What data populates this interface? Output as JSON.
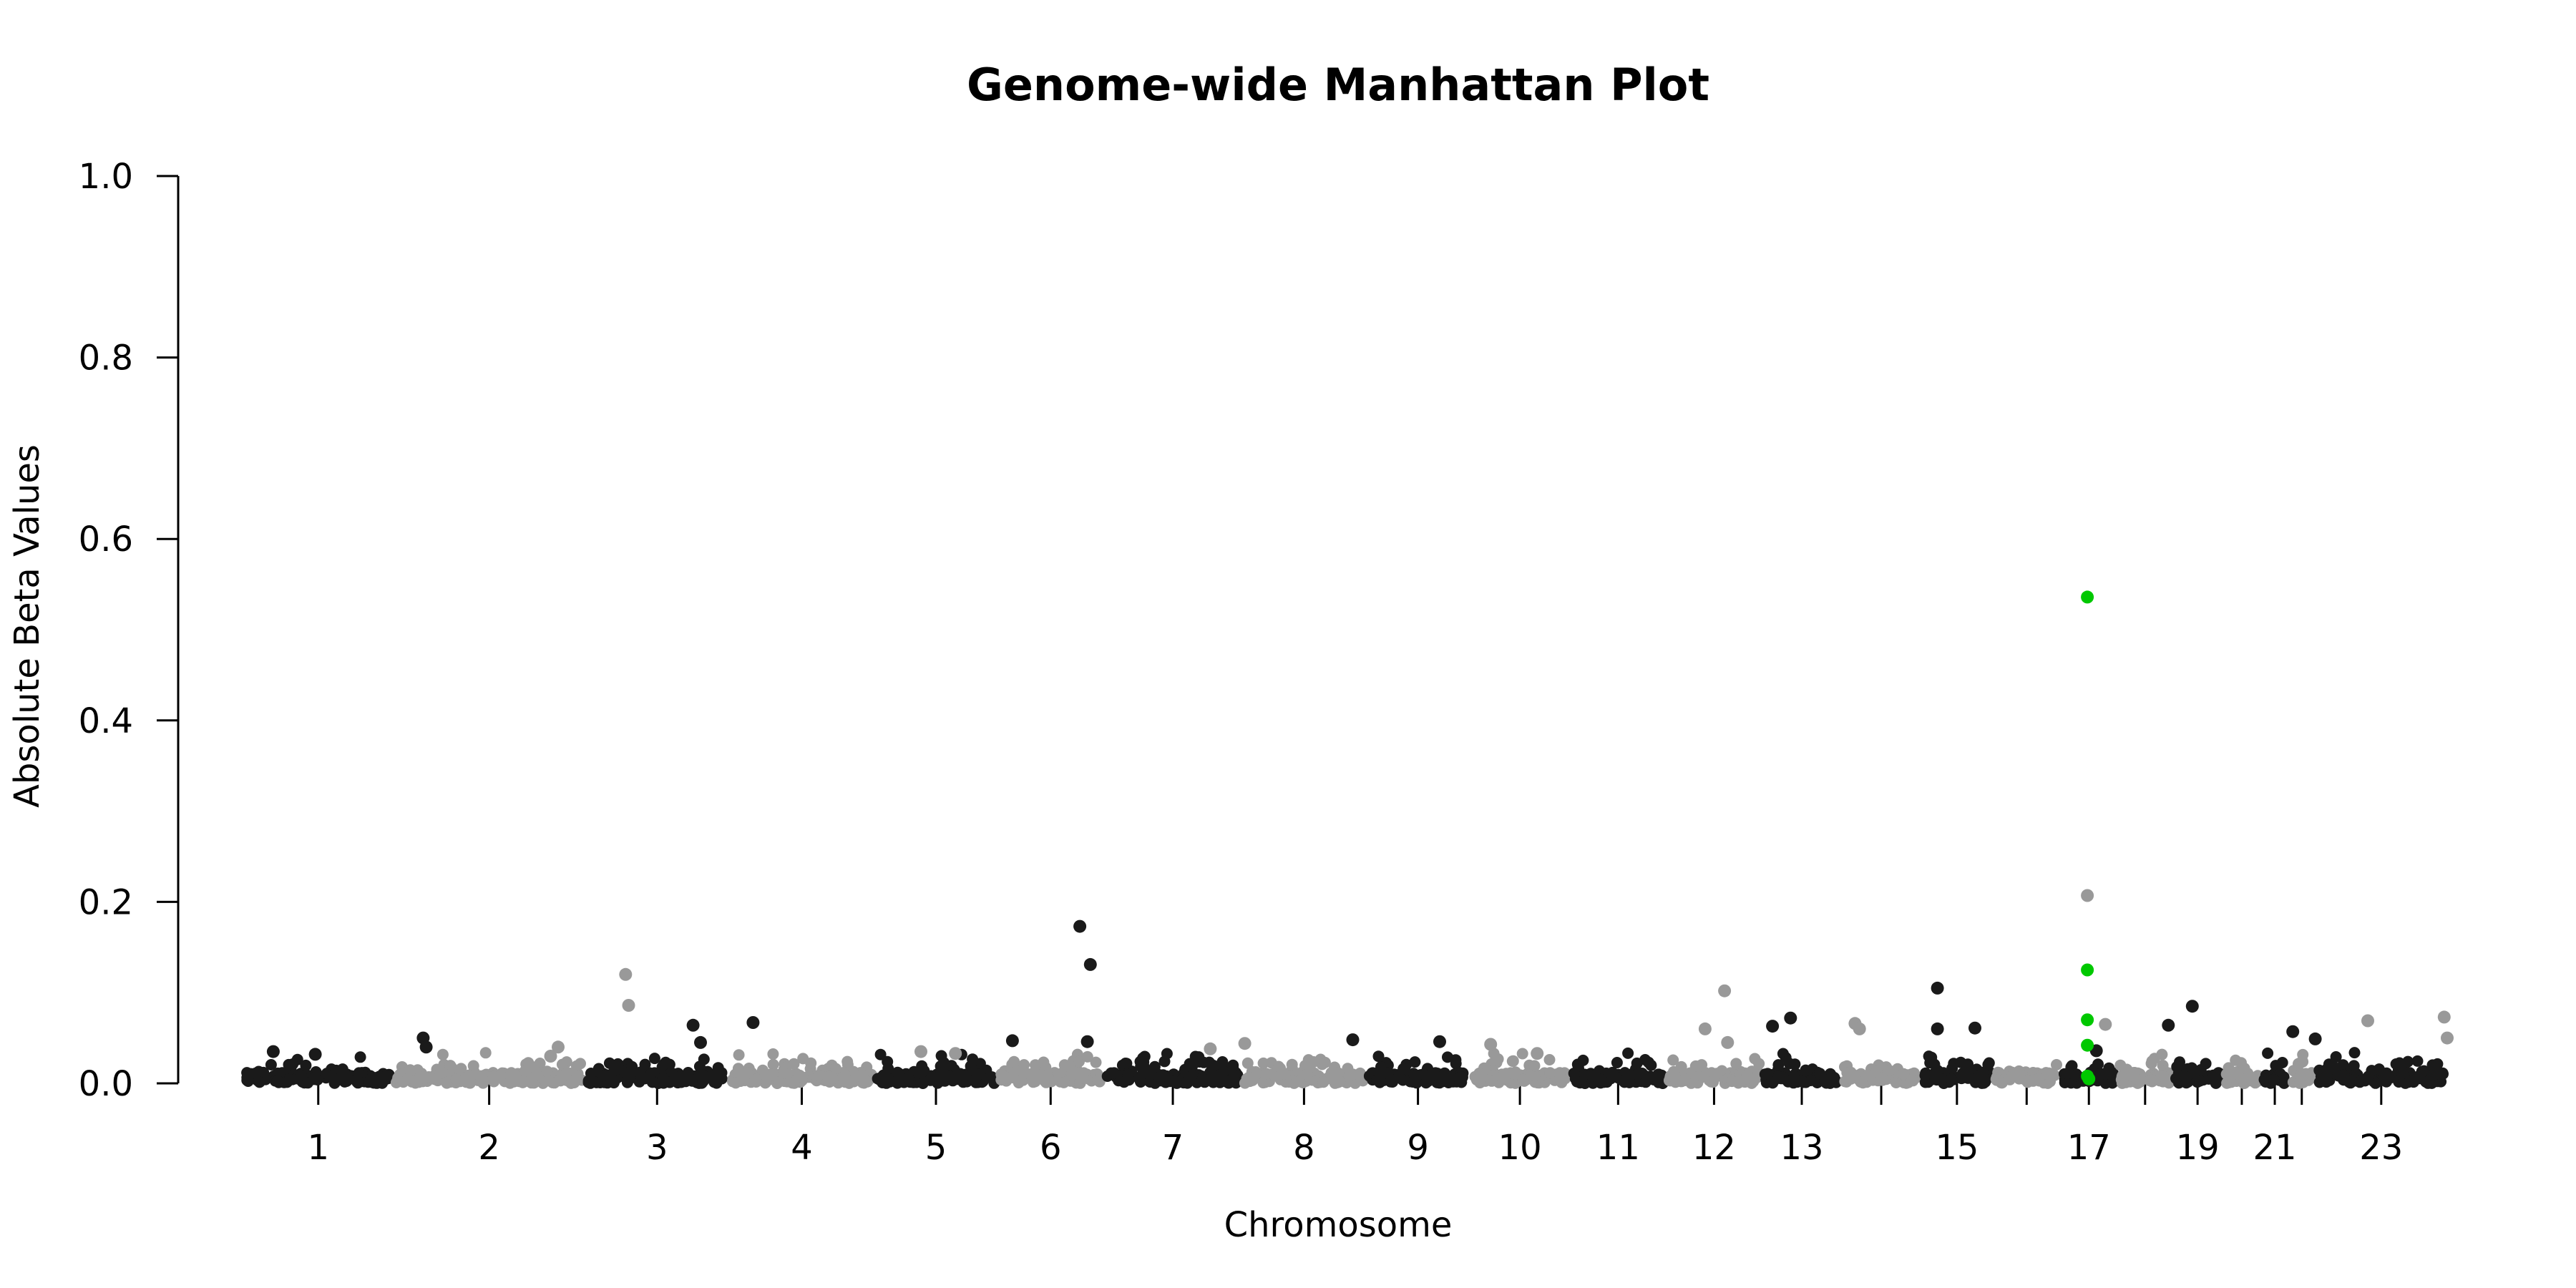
{
  "chart_data": {
    "type": "scatter",
    "title": "Genome-wide Manhattan Plot",
    "xlabel": "Chromosome",
    "ylabel": "Absolute Beta Values",
    "ylim": [
      0,
      1.0
    ],
    "yticks": [
      "0.0",
      "0.2",
      "0.4",
      "0.6",
      "0.8",
      "1.0"
    ],
    "xtick_labels": [
      "1",
      "2",
      "3",
      "4",
      "5",
      "6",
      "7",
      "8",
      "9",
      "10",
      "11",
      "12",
      "13",
      "15",
      "17",
      "19",
      "21",
      "23"
    ],
    "grid": false,
    "legend": "none",
    "colors": {
      "odd_chromosome": "#1a1a1a",
      "even_chromosome": "#999999",
      "highlight": "#00c800"
    },
    "chromosomes": [
      {
        "chr": 1,
        "start": 0.0,
        "end": 1.0,
        "label": "1",
        "shade": "dark"
      },
      {
        "chr": 2,
        "start": 1.0,
        "end": 2.28,
        "label": "2",
        "shade": "light"
      },
      {
        "chr": 3,
        "start": 2.28,
        "end": 3.24,
        "label": "3",
        "shade": "dark"
      },
      {
        "chr": 4,
        "start": 3.24,
        "end": 4.21,
        "label": "4",
        "shade": "light"
      },
      {
        "chr": 5,
        "start": 4.21,
        "end": 5.03,
        "label": "5",
        "shade": "dark"
      },
      {
        "chr": 6,
        "start": 5.03,
        "end": 5.74,
        "label": "6",
        "shade": "light"
      },
      {
        "chr": 7,
        "start": 5.74,
        "end": 6.66,
        "label": "7",
        "shade": "dark"
      },
      {
        "chr": 8,
        "start": 6.66,
        "end": 7.49,
        "label": "8",
        "shade": "light"
      },
      {
        "chr": 9,
        "start": 7.49,
        "end": 8.18,
        "label": "9",
        "shade": "dark"
      },
      {
        "chr": 10,
        "start": 8.18,
        "end": 8.85,
        "label": "10",
        "shade": "light"
      },
      {
        "chr": 11,
        "start": 8.85,
        "end": 9.49,
        "label": "11",
        "shade": "dark"
      },
      {
        "chr": 12,
        "start": 9.49,
        "end": 10.13,
        "label": "12",
        "shade": "light"
      },
      {
        "chr": 13,
        "start": 10.13,
        "end": 10.66,
        "label": "13",
        "shade": "dark"
      },
      {
        "chr": 14,
        "start": 10.66,
        "end": 11.19,
        "label": "",
        "shade": "light"
      },
      {
        "chr": 15,
        "start": 11.19,
        "end": 11.67,
        "label": "15",
        "shade": "dark"
      },
      {
        "chr": 16,
        "start": 11.67,
        "end": 12.12,
        "label": "",
        "shade": "light"
      },
      {
        "chr": 17,
        "start": 12.12,
        "end": 12.5,
        "label": "17",
        "shade": "dark"
      },
      {
        "chr": 18,
        "start": 12.5,
        "end": 12.87,
        "label": "",
        "shade": "light"
      },
      {
        "chr": 19,
        "start": 12.87,
        "end": 13.2,
        "label": "19",
        "shade": "dark"
      },
      {
        "chr": 20,
        "start": 13.2,
        "end": 13.46,
        "label": "",
        "shade": "light"
      },
      {
        "chr": 21,
        "start": 13.46,
        "end": 13.64,
        "label": "21",
        "shade": "dark"
      },
      {
        "chr": 22,
        "start": 13.64,
        "end": 13.82,
        "label": "",
        "shade": "light"
      },
      {
        "chr": 23,
        "start": 13.82,
        "end": 14.7,
        "label": "23",
        "shade": "dark"
      }
    ],
    "peaks": [
      {
        "chr": 1,
        "x": 0.2,
        "y": 0.035,
        "shade": "dark"
      },
      {
        "chr": 1,
        "x": 0.48,
        "y": 0.032,
        "shade": "dark"
      },
      {
        "chr": 1,
        "x": 1.2,
        "y": 0.05,
        "shade": "dark"
      },
      {
        "chr": 1,
        "x": 1.22,
        "y": 0.04,
        "shade": "dark"
      },
      {
        "chr": 2,
        "x": 2.1,
        "y": 0.04,
        "shade": "light"
      },
      {
        "chr": 2,
        "x": 2.05,
        "y": 0.03,
        "shade": "light"
      },
      {
        "chr": 2,
        "x": 2.55,
        "y": 0.12,
        "shade": "light"
      },
      {
        "chr": 2,
        "x": 2.57,
        "y": 0.086,
        "shade": "light"
      },
      {
        "chr": 3,
        "x": 3.0,
        "y": 0.064,
        "shade": "dark"
      },
      {
        "chr": 3,
        "x": 3.05,
        "y": 0.045,
        "shade": "dark"
      },
      {
        "chr": 3,
        "x": 3.4,
        "y": 0.067,
        "shade": "dark"
      },
      {
        "chr": 4,
        "x": 4.52,
        "y": 0.035,
        "shade": "light"
      },
      {
        "chr": 4,
        "x": 4.75,
        "y": 0.033,
        "shade": "light"
      },
      {
        "chr": 5,
        "x": 5.58,
        "y": 0.173,
        "shade": "dark"
      },
      {
        "chr": 5,
        "x": 5.65,
        "y": 0.131,
        "shade": "dark"
      },
      {
        "chr": 5,
        "x": 5.13,
        "y": 0.047,
        "shade": "dark"
      },
      {
        "chr": 5,
        "x": 5.63,
        "y": 0.046,
        "shade": "dark"
      },
      {
        "chr": 6,
        "x": 6.45,
        "y": 0.038,
        "shade": "light"
      },
      {
        "chr": 6,
        "x": 6.68,
        "y": 0.044,
        "shade": "light"
      },
      {
        "chr": 7,
        "x": 7.4,
        "y": 0.048,
        "shade": "dark"
      },
      {
        "chr": 7,
        "x": 7.98,
        "y": 0.046,
        "shade": "dark"
      },
      {
        "chr": 8,
        "x": 8.32,
        "y": 0.043,
        "shade": "light"
      },
      {
        "chr": 8,
        "x": 8.63,
        "y": 0.033,
        "shade": "light"
      },
      {
        "chr": 10,
        "x": 9.75,
        "y": 0.06,
        "shade": "light"
      },
      {
        "chr": 10,
        "x": 9.88,
        "y": 0.102,
        "shade": "light"
      },
      {
        "chr": 10,
        "x": 9.9,
        "y": 0.045,
        "shade": "light"
      },
      {
        "chr": 11,
        "x": 10.2,
        "y": 0.063,
        "shade": "dark"
      },
      {
        "chr": 11,
        "x": 10.32,
        "y": 0.072,
        "shade": "dark"
      },
      {
        "chr": 12,
        "x": 10.75,
        "y": 0.066,
        "shade": "light"
      },
      {
        "chr": 12,
        "x": 10.78,
        "y": 0.06,
        "shade": "light"
      },
      {
        "chr": 13,
        "x": 11.3,
        "y": 0.105,
        "shade": "dark"
      },
      {
        "chr": 13,
        "x": 11.3,
        "y": 0.06,
        "shade": "dark"
      },
      {
        "chr": 13,
        "x": 11.55,
        "y": 0.061,
        "shade": "dark"
      },
      {
        "chr": 14,
        "x": 12.3,
        "y": 0.207,
        "shade": "light"
      },
      {
        "chr": 14,
        "x": 12.42,
        "y": 0.065,
        "shade": "light"
      },
      {
        "chr": 15,
        "x": 12.36,
        "y": 0.036,
        "shade": "dark"
      },
      {
        "chr": 15,
        "x": 12.84,
        "y": 0.064,
        "shade": "dark"
      },
      {
        "chr": 15,
        "x": 13.0,
        "y": 0.085,
        "shade": "dark"
      },
      {
        "chr": 17,
        "x": 13.67,
        "y": 0.057,
        "shade": "dark"
      },
      {
        "chr": 17,
        "x": 13.82,
        "y": 0.049,
        "shade": "dark"
      },
      {
        "chr": 18,
        "x": 14.17,
        "y": 0.069,
        "shade": "light"
      },
      {
        "chr": 22,
        "x": 14.68,
        "y": 0.073,
        "shade": "light"
      },
      {
        "chr": 22,
        "x": 14.7,
        "y": 0.05,
        "shade": "light"
      }
    ],
    "highlighted": [
      {
        "chr": 14,
        "x": 12.3,
        "y": 0.536
      },
      {
        "chr": 14,
        "x": 12.3,
        "y": 0.125
      },
      {
        "chr": 14,
        "x": 12.3,
        "y": 0.07
      },
      {
        "chr": 14,
        "x": 12.3,
        "y": 0.042
      },
      {
        "chr": 14,
        "x": 12.3,
        "y": 0.008
      },
      {
        "chr": 14,
        "x": 12.31,
        "y": 0.005
      }
    ]
  }
}
